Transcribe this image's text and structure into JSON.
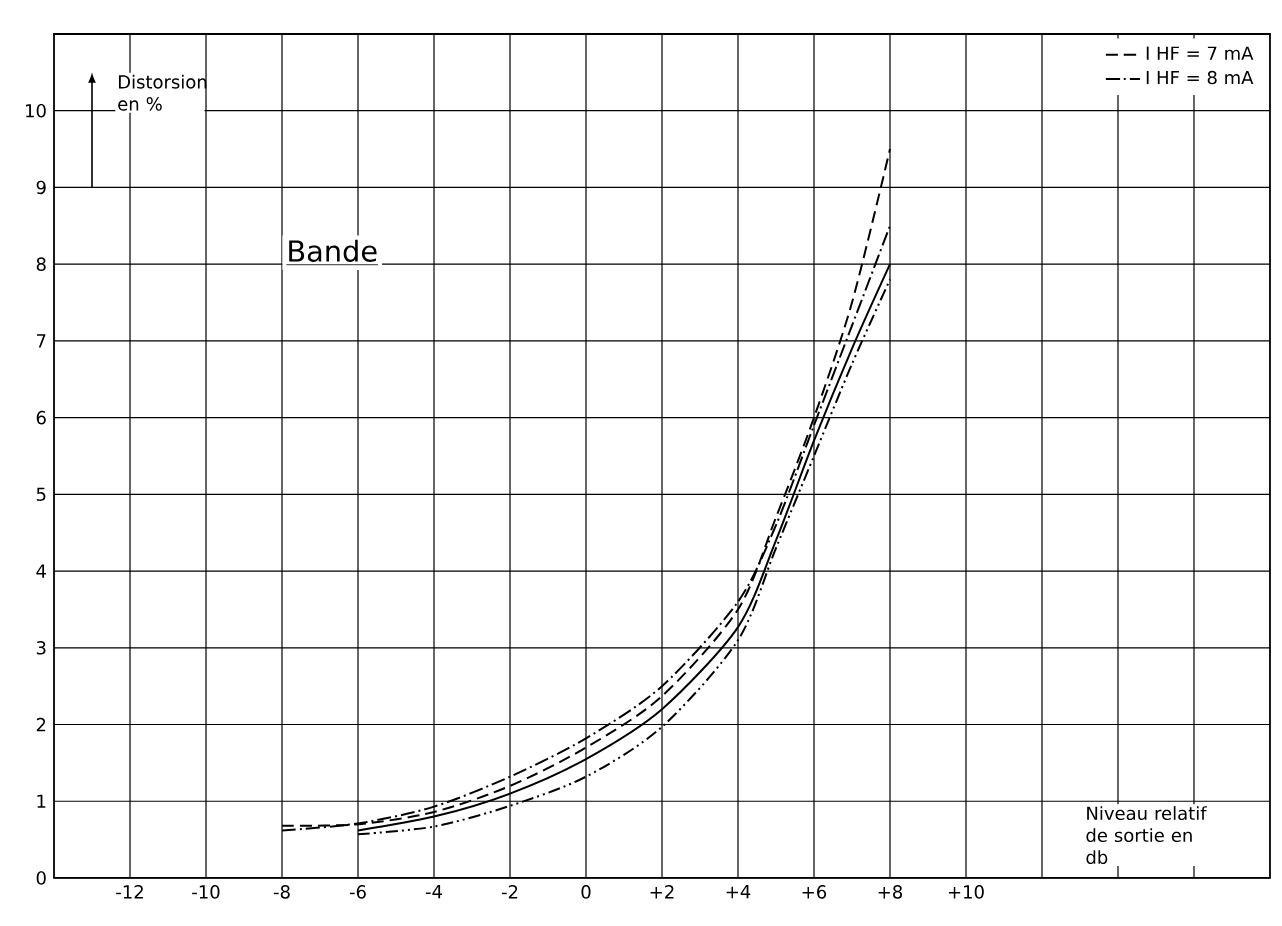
{
  "chart_data": {
    "type": "line",
    "title": "Bande",
    "xlabel": "Niveau relatif de sortie en db",
    "ylabel": "Distorsion en %",
    "xlim": [
      -14,
      18
    ],
    "ylim": [
      0,
      11
    ],
    "xticks": [
      {
        "value": -12,
        "label": "-12"
      },
      {
        "value": -10,
        "label": "-10"
      },
      {
        "value": -8,
        "label": "-8"
      },
      {
        "value": -6,
        "label": "-6"
      },
      {
        "value": -4,
        "label": "-4"
      },
      {
        "value": -2,
        "label": "-2"
      },
      0,
      {
        "value": 2,
        "label": "+2"
      },
      {
        "value": 4,
        "label": "+4"
      },
      {
        "value": 6,
        "label": "+6"
      },
      {
        "value": 8,
        "label": "+8"
      },
      {
        "value": 10,
        "label": "+10"
      },
      {
        "value": 12,
        "label": null
      },
      {
        "value": 14,
        "label": null
      },
      {
        "value": 16,
        "label": null
      }
    ],
    "yticks": [
      0,
      1,
      2,
      3,
      4,
      5,
      6,
      7,
      8,
      9,
      10,
      {
        "value": 11,
        "label": null
      }
    ],
    "grid": true,
    "legend": "top right",
    "marker": "none",
    "series": [
      {
        "name": "I HF = 7 mA",
        "color": "#000000",
        "line_style": "dashed",
        "x": [
          -8,
          -6,
          -4,
          -2,
          0,
          2,
          4,
          5,
          6,
          7,
          8
        ],
        "values": [
          0.68,
          0.7,
          0.86,
          1.2,
          1.7,
          2.37,
          3.5,
          4.7,
          6.0,
          7.5,
          9.5
        ]
      },
      {
        "name": "I HF = 8 mA",
        "color": "#000000",
        "line_style": "dashdot",
        "x": [
          -8,
          -6,
          -4,
          -2,
          0,
          2,
          4,
          5,
          6,
          7,
          8
        ],
        "values": [
          0.62,
          0.71,
          0.93,
          1.32,
          1.82,
          2.5,
          3.6,
          4.6,
          5.9,
          7.2,
          8.5
        ]
      },
      {
        "color": "#000000",
        "line_style": "solid",
        "x": [
          -6,
          -4,
          -2,
          0,
          2,
          4,
          5,
          6,
          7,
          8
        ],
        "values": [
          0.62,
          0.8,
          1.1,
          1.55,
          2.2,
          3.27,
          4.4,
          5.7,
          6.9,
          8.0
        ]
      },
      {
        "color": "#000000",
        "line_style": "dashdotdot",
        "x": [
          -6,
          -4,
          -2,
          0,
          2,
          4,
          5,
          6,
          7,
          8
        ],
        "values": [
          0.57,
          0.67,
          0.94,
          1.32,
          1.97,
          3.1,
          4.3,
          5.5,
          6.7,
          7.8
        ]
      }
    ]
  }
}
